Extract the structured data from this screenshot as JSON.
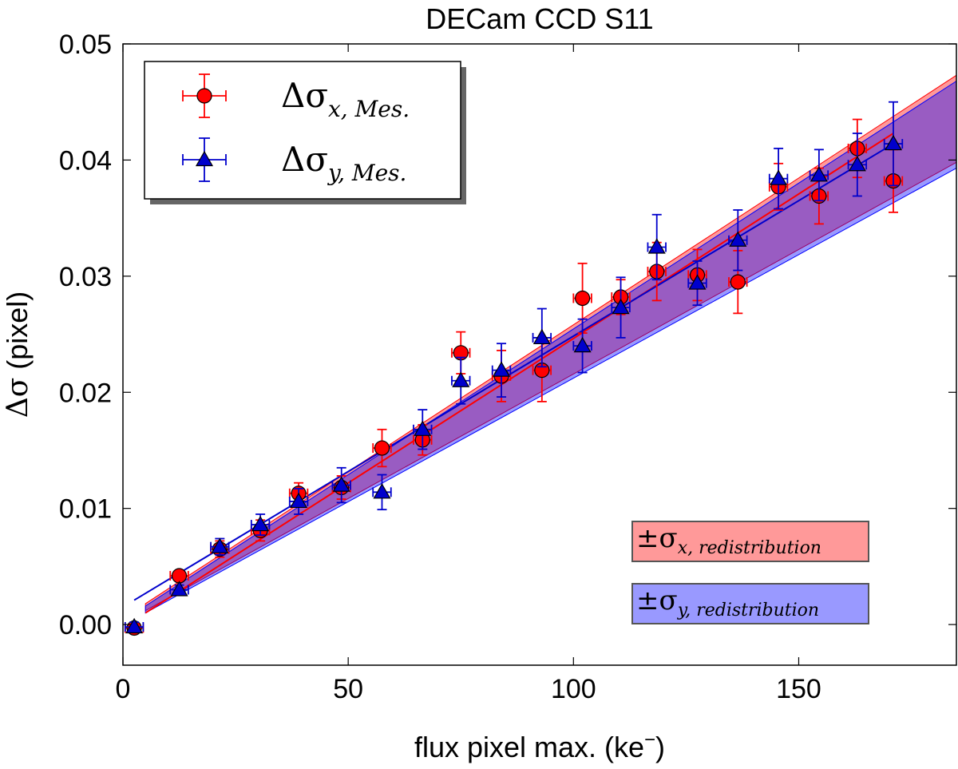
{
  "chart_data": {
    "type": "scatter",
    "title": "DECam CCD S11",
    "xlabel": "flux pixel max. (ke",
    "xlabel_sup": "−",
    "xlabel_close": ")",
    "ylabel_symbol": "Δσ",
    "ylabel_text": " (pixel)",
    "xlim": [
      0,
      185
    ],
    "ylim": [
      -0.0035,
      0.05
    ],
    "xticks": [
      0,
      50,
      100,
      150
    ],
    "xtick_labels": [
      "0",
      "50",
      "100",
      "150"
    ],
    "yticks": [
      0.0,
      0.01,
      0.02,
      0.03,
      0.04,
      0.05
    ],
    "ytick_labels": [
      "0.00",
      "0.01",
      "0.02",
      "0.03",
      "0.04",
      "0.05"
    ],
    "grid": false,
    "legend": {
      "placement": "upper-left"
    },
    "series": [
      {
        "name": "Δσx, Mes.",
        "legend_main": "Δσ",
        "legend_sub": "x, Mes.",
        "color": "#ff0000",
        "edge": "#000000",
        "marker": "circle",
        "points": [
          {
            "x": 2.5,
            "y": -0.0003,
            "xerr": 2.0,
            "yerr": 0.0004
          },
          {
            "x": 12.5,
            "y": 0.0042,
            "xerr": 2.0,
            "yerr": 0.0004
          },
          {
            "x": 21.5,
            "y": 0.0065,
            "xerr": 2.0,
            "yerr": 0.0007
          },
          {
            "x": 30.5,
            "y": 0.0081,
            "xerr": 2.0,
            "yerr": 0.0009
          },
          {
            "x": 39.0,
            "y": 0.0113,
            "xerr": 2.0,
            "yerr": 0.0009
          },
          {
            "x": 48.5,
            "y": 0.0118,
            "xerr": 2.0,
            "yerr": 0.001
          },
          {
            "x": 57.5,
            "y": 0.0152,
            "xerr": 2.0,
            "yerr": 0.0016
          },
          {
            "x": 66.5,
            "y": 0.0159,
            "xerr": 2.0,
            "yerr": 0.0013
          },
          {
            "x": 75.0,
            "y": 0.0234,
            "xerr": 2.0,
            "yerr": 0.0018
          },
          {
            "x": 84.0,
            "y": 0.0214,
            "xerr": 2.0,
            "yerr": 0.0022
          },
          {
            "x": 93.0,
            "y": 0.0219,
            "xerr": 2.0,
            "yerr": 0.0027
          },
          {
            "x": 102.0,
            "y": 0.0281,
            "xerr": 2.0,
            "yerr": 0.003
          },
          {
            "x": 110.5,
            "y": 0.0282,
            "xerr": 2.0,
            "yerr": 0.0015
          },
          {
            "x": 118.5,
            "y": 0.0304,
            "xerr": 2.0,
            "yerr": 0.0025
          },
          {
            "x": 127.5,
            "y": 0.0301,
            "xerr": 2.0,
            "yerr": 0.0022
          },
          {
            "x": 136.5,
            "y": 0.0295,
            "xerr": 2.0,
            "yerr": 0.0027
          },
          {
            "x": 145.5,
            "y": 0.0377,
            "xerr": 2.0,
            "yerr": 0.002
          },
          {
            "x": 154.5,
            "y": 0.0369,
            "xerr": 2.0,
            "yerr": 0.0024
          },
          {
            "x": 163.0,
            "y": 0.041,
            "xerr": 2.0,
            "yerr": 0.0025
          },
          {
            "x": 171.0,
            "y": 0.0382,
            "xerr": 2.0,
            "yerr": 0.0027
          }
        ],
        "fit": {
          "x": [
            5,
            171
          ],
          "y": [
            0.001,
            0.0423
          ]
        }
      },
      {
        "name": "Δσy, Mes.",
        "legend_main": "Δσ",
        "legend_sub": "y, Mes.",
        "color": "#0000cc",
        "edge": "#000000",
        "marker": "triangle",
        "points": [
          {
            "x": 2.5,
            "y": -0.0002,
            "xerr": 2.0,
            "yerr": 0.0004
          },
          {
            "x": 12.5,
            "y": 0.003,
            "xerr": 2.0,
            "yerr": 0.0004
          },
          {
            "x": 21.5,
            "y": 0.0067,
            "xerr": 2.0,
            "yerr": 0.0007
          },
          {
            "x": 30.5,
            "y": 0.0086,
            "xerr": 2.0,
            "yerr": 0.0009
          },
          {
            "x": 39.0,
            "y": 0.0106,
            "xerr": 2.0,
            "yerr": 0.0011
          },
          {
            "x": 48.5,
            "y": 0.012,
            "xerr": 2.0,
            "yerr": 0.0015
          },
          {
            "x": 57.5,
            "y": 0.0114,
            "xerr": 2.0,
            "yerr": 0.0015
          },
          {
            "x": 66.5,
            "y": 0.0168,
            "xerr": 2.0,
            "yerr": 0.0017
          },
          {
            "x": 75.0,
            "y": 0.021,
            "xerr": 2.0,
            "yerr": 0.002
          },
          {
            "x": 84.0,
            "y": 0.0219,
            "xerr": 2.0,
            "yerr": 0.0023
          },
          {
            "x": 93.0,
            "y": 0.0247,
            "xerr": 2.0,
            "yerr": 0.0025
          },
          {
            "x": 102.0,
            "y": 0.024,
            "xerr": 2.0,
            "yerr": 0.0023
          },
          {
            "x": 110.5,
            "y": 0.0273,
            "xerr": 2.0,
            "yerr": 0.0026
          },
          {
            "x": 118.5,
            "y": 0.0325,
            "xerr": 2.0,
            "yerr": 0.0028
          },
          {
            "x": 127.5,
            "y": 0.0294,
            "xerr": 2.0,
            "yerr": 0.0019
          },
          {
            "x": 136.5,
            "y": 0.0331,
            "xerr": 2.0,
            "yerr": 0.0026
          },
          {
            "x": 145.5,
            "y": 0.0384,
            "xerr": 2.0,
            "yerr": 0.0026
          },
          {
            "x": 154.5,
            "y": 0.0387,
            "xerr": 2.0,
            "yerr": 0.0022
          },
          {
            "x": 163.0,
            "y": 0.0396,
            "xerr": 2.0,
            "yerr": 0.0027
          },
          {
            "x": 171.0,
            "y": 0.0414,
            "xerr": 2.0,
            "yerr": 0.0036
          }
        ],
        "fit": {
          "x": [
            2.5,
            171
          ],
          "y": [
            0.0021,
            0.0414
          ]
        }
      }
    ],
    "bands": [
      {
        "name": "±σx, redistribution",
        "legend_main": "±σ",
        "legend_sub": "x, redistribution",
        "color": "#ff0000",
        "alpha": 0.4,
        "x": [
          5,
          185
        ],
        "upper": [
          0.0018,
          0.0473
        ],
        "lower": [
          0.0012,
          0.0398
        ]
      },
      {
        "name": "±σy, redistribution",
        "legend_main": "±σ",
        "legend_sub": "y, redistribution",
        "color": "#0000ff",
        "alpha": 0.4,
        "x": [
          5,
          185
        ],
        "upper": [
          0.0016,
          0.0468
        ],
        "lower": [
          0.001,
          0.0393
        ]
      }
    ]
  }
}
